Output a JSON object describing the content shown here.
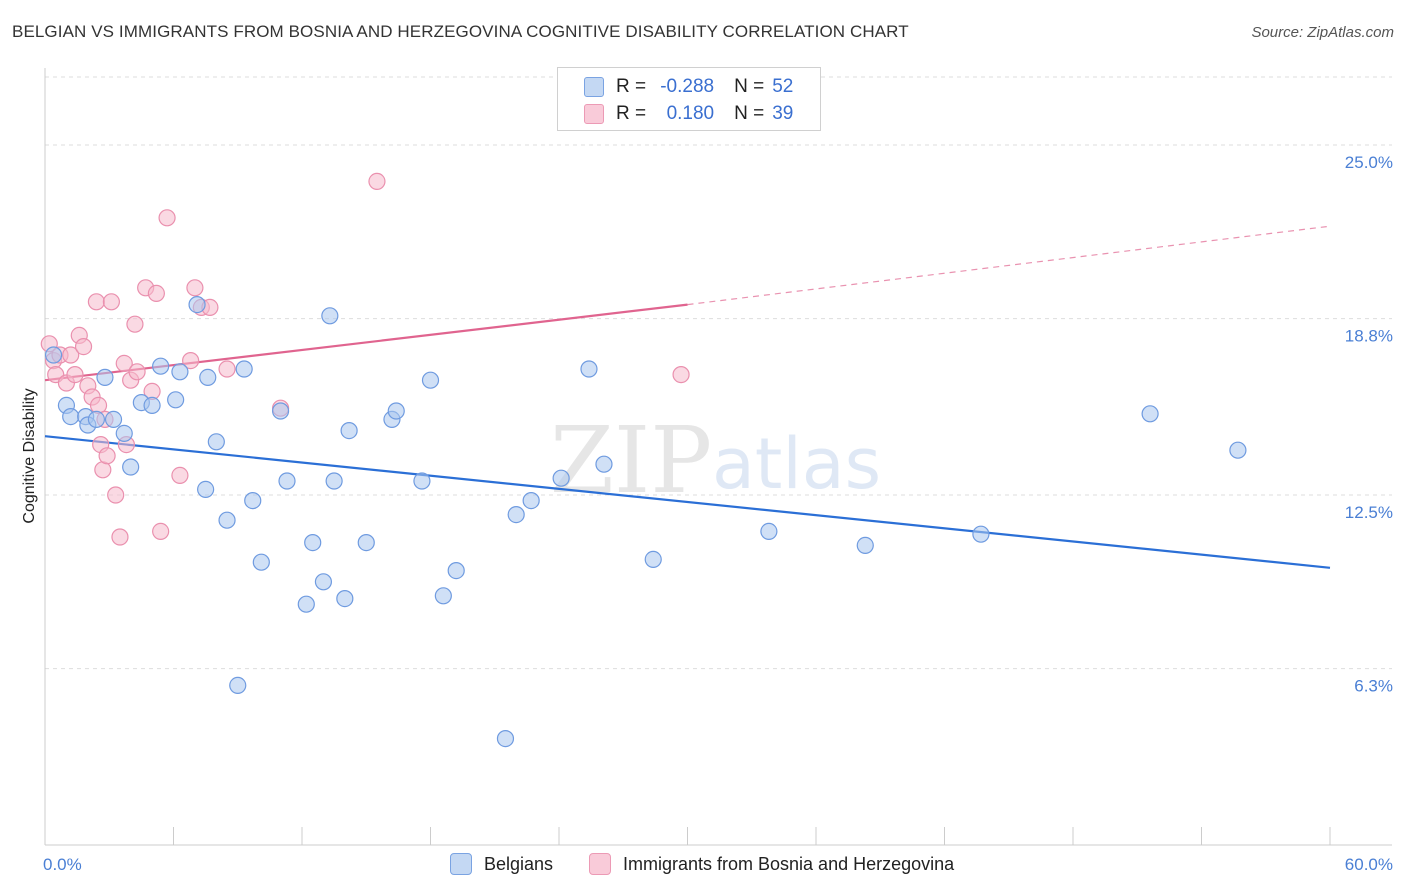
{
  "header": {
    "title": "BELGIAN VS IMMIGRANTS FROM BOSNIA AND HERZEGOVINA COGNITIVE DISABILITY CORRELATION CHART",
    "source": "Source: ZipAtlas.com"
  },
  "legend": {
    "series1": {
      "r_label": "R =",
      "r_value": "-0.288",
      "n_label": "N =",
      "n_value": "52"
    },
    "series2": {
      "r_label": "R =",
      "r_value": "0.180",
      "n_label": "N =",
      "n_value": "39"
    }
  },
  "bottom_legend": {
    "series1": "Belgians",
    "series2": "Immigrants from Bosnia and Herzegovina"
  },
  "colors": {
    "blue_fill": "#a9c6ee",
    "blue_stroke": "#6f9be0",
    "blue_line": "#2b6fd6",
    "pink_fill": "#f6b9cc",
    "pink_stroke": "#ea90ae",
    "pink_line": "#e0648f",
    "grid": "#dddddd",
    "tick_label": "#4a7fd4"
  },
  "chart_data": {
    "type": "scatter",
    "title": "BELGIAN VS IMMIGRANTS FROM BOSNIA AND HERZEGOVINA COGNITIVE DISABILITY CORRELATION CHART",
    "xlabel": "",
    "ylabel": "Cognitive Disability",
    "xlim": [
      0,
      60
    ],
    "ylim": [
      0,
      27.5
    ],
    "x_tick_labels": [
      "0.0%",
      "60.0%"
    ],
    "y_ticks": [
      6.3,
      12.5,
      18.8,
      25.0
    ],
    "y_tick_labels": [
      "6.3%",
      "12.5%",
      "18.8%",
      "25.0%"
    ],
    "watermark": "ZIPatlas",
    "series": [
      {
        "name": "Belgians",
        "color": "#a9c6ee",
        "points": [
          [
            0.4,
            17.5
          ],
          [
            1.0,
            15.7
          ],
          [
            1.2,
            15.3
          ],
          [
            1.9,
            15.3
          ],
          [
            2.0,
            15.0
          ],
          [
            2.4,
            15.2
          ],
          [
            2.8,
            16.7
          ],
          [
            3.2,
            15.2
          ],
          [
            3.7,
            14.7
          ],
          [
            4.0,
            13.5
          ],
          [
            4.5,
            15.8
          ],
          [
            5.0,
            15.7
          ],
          [
            5.4,
            17.1
          ],
          [
            6.1,
            15.9
          ],
          [
            6.3,
            16.9
          ],
          [
            7.1,
            19.3
          ],
          [
            7.5,
            12.7
          ],
          [
            7.6,
            16.7
          ],
          [
            8.0,
            14.4
          ],
          [
            8.5,
            11.6
          ],
          [
            9.0,
            5.7
          ],
          [
            9.3,
            17.0
          ],
          [
            9.7,
            12.3
          ],
          [
            10.1,
            10.1
          ],
          [
            11.0,
            15.5
          ],
          [
            11.3,
            13.0
          ],
          [
            12.2,
            8.6
          ],
          [
            12.5,
            10.8
          ],
          [
            13.0,
            9.4
          ],
          [
            13.3,
            18.9
          ],
          [
            13.5,
            13.0
          ],
          [
            14.0,
            8.8
          ],
          [
            14.2,
            14.8
          ],
          [
            15.0,
            10.8
          ],
          [
            16.2,
            15.2
          ],
          [
            16.4,
            15.5
          ],
          [
            17.6,
            13.0
          ],
          [
            18.0,
            16.6
          ],
          [
            18.6,
            8.9
          ],
          [
            19.2,
            9.8
          ],
          [
            21.5,
            3.8
          ],
          [
            22.0,
            11.8
          ],
          [
            22.7,
            12.3
          ],
          [
            24.1,
            13.1
          ],
          [
            25.4,
            17.0
          ],
          [
            26.1,
            13.6
          ],
          [
            28.4,
            10.2
          ],
          [
            33.8,
            11.2
          ],
          [
            38.3,
            10.7
          ],
          [
            43.7,
            11.1
          ],
          [
            51.6,
            15.4
          ],
          [
            55.7,
            14.1
          ]
        ],
        "trendline": {
          "x": [
            0,
            60
          ],
          "y": [
            14.6,
            9.9
          ],
          "style": "solid"
        }
      },
      {
        "name": "Immigrants from Bosnia and Herzegovina",
        "color": "#f6b9cc",
        "points": [
          [
            0.2,
            17.9
          ],
          [
            0.4,
            17.3
          ],
          [
            0.5,
            16.8
          ],
          [
            0.7,
            17.5
          ],
          [
            1.0,
            16.5
          ],
          [
            1.2,
            17.5
          ],
          [
            1.4,
            16.8
          ],
          [
            1.6,
            18.2
          ],
          [
            1.8,
            17.8
          ],
          [
            2.0,
            16.4
          ],
          [
            2.2,
            16.0
          ],
          [
            2.4,
            19.4
          ],
          [
            2.5,
            15.7
          ],
          [
            2.6,
            14.3
          ],
          [
            2.7,
            13.4
          ],
          [
            2.8,
            15.2
          ],
          [
            2.9,
            13.9
          ],
          [
            3.1,
            19.4
          ],
          [
            3.3,
            12.5
          ],
          [
            3.5,
            11.0
          ],
          [
            3.7,
            17.2
          ],
          [
            3.8,
            14.3
          ],
          [
            4.0,
            16.6
          ],
          [
            4.2,
            18.6
          ],
          [
            4.3,
            16.9
          ],
          [
            4.7,
            19.9
          ],
          [
            5.0,
            16.2
          ],
          [
            5.2,
            19.7
          ],
          [
            5.4,
            11.2
          ],
          [
            5.7,
            22.4
          ],
          [
            6.3,
            13.2
          ],
          [
            6.8,
            17.3
          ],
          [
            7.0,
            19.9
          ],
          [
            7.3,
            19.2
          ],
          [
            7.7,
            19.2
          ],
          [
            8.5,
            17.0
          ],
          [
            11.0,
            15.6
          ],
          [
            15.5,
            23.7
          ],
          [
            29.7,
            16.8
          ]
        ],
        "trendline": {
          "x": [
            0,
            30
          ],
          "y": [
            16.6,
            19.3
          ],
          "style": "solid",
          "extension": {
            "x": [
              30,
              60
            ],
            "y": [
              19.3,
              22.1
            ],
            "style": "dashed"
          }
        }
      }
    ]
  }
}
